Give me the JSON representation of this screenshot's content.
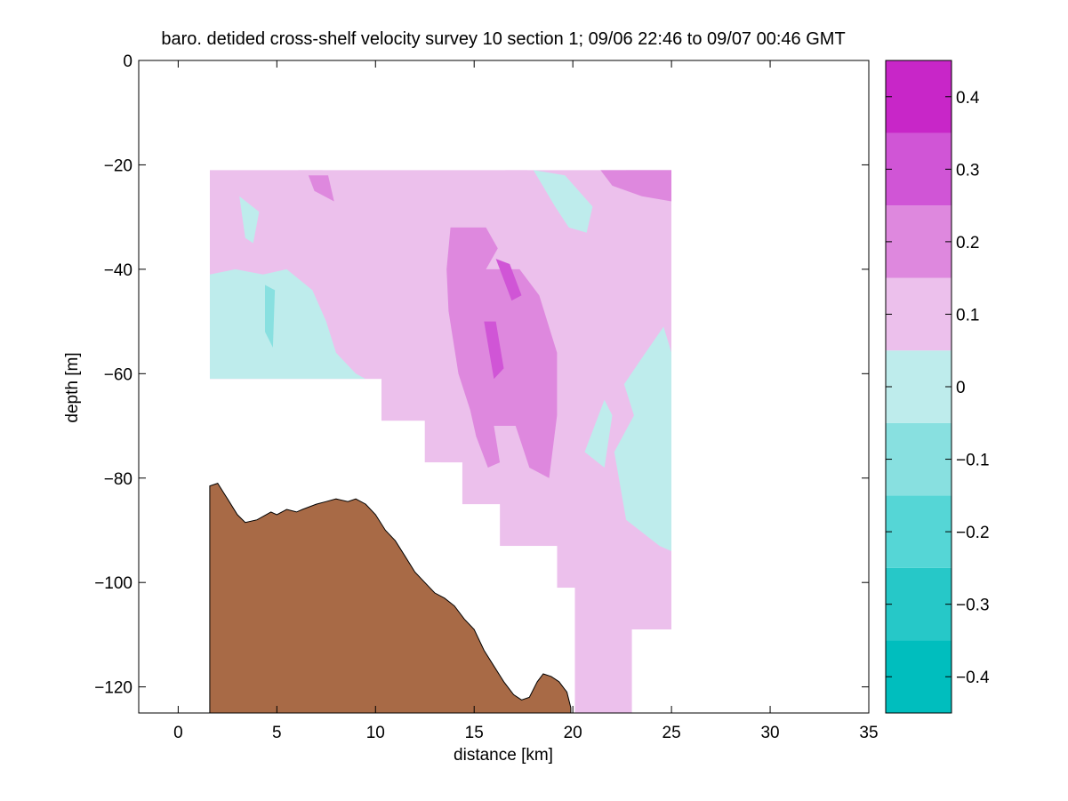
{
  "chart_data": {
    "type": "heatmap",
    "title": "baro. detided cross-shelf velocity survey 10 section 1; 09/06 22:46 to 09/07 00:46 GMT",
    "xlabel": "distance [km]",
    "ylabel": "depth [m]",
    "xlim": [
      -2,
      35
    ],
    "ylim": [
      -125,
      0
    ],
    "x_ticks": [
      0,
      5,
      10,
      15,
      20,
      25,
      30,
      35
    ],
    "x_tick_labels": [
      "0",
      "5",
      "10",
      "15",
      "20",
      "25",
      "30",
      "35"
    ],
    "y_ticks": [
      0,
      -20,
      -40,
      -60,
      -80,
      -100,
      -120
    ],
    "y_tick_labels": [
      "0",
      "−20",
      "−40",
      "−60",
      "−80",
      "−100",
      "−120"
    ],
    "colorbar": {
      "range": [
        -0.45,
        0.45
      ],
      "ticks": [
        -0.4,
        -0.3,
        -0.2,
        -0.1,
        0,
        0.1,
        0.2,
        0.3,
        0.4
      ],
      "tick_labels": [
        "−0.4",
        "−0.3",
        "−0.2",
        "−0.1",
        "0",
        "0.1",
        "0.2",
        "0.3",
        "0.4"
      ],
      "levels": [
        {
          "range": [
            -0.45,
            -0.35
          ],
          "color": "#00BEBE"
        },
        {
          "range": [
            -0.35,
            -0.25
          ],
          "color": "#26C8C8"
        },
        {
          "range": [
            -0.25,
            -0.15
          ],
          "color": "#55D6D6"
        },
        {
          "range": [
            -0.15,
            -0.05
          ],
          "color": "#88E0E0"
        },
        {
          "range": [
            -0.05,
            0.05
          ],
          "color": "#BEECEC"
        },
        {
          "range": [
            0.05,
            0.15
          ],
          "color": "#ECC0EC"
        },
        {
          "range": [
            0.15,
            0.25
          ],
          "color": "#DE88DE"
        },
        {
          "range": [
            0.25,
            0.35
          ],
          "color": "#D055D6"
        },
        {
          "range": [
            0.35,
            0.45
          ],
          "color": "#C826C8"
        }
      ],
      "top_color": "#BE00BE"
    },
    "bottom_color": "#A86A46",
    "data_mask": [
      [
        1.6,
        -21
      ],
      [
        25,
        -21
      ],
      [
        25,
        -109
      ],
      [
        23,
        -109
      ],
      [
        23,
        -125
      ],
      [
        20.1,
        -125
      ],
      [
        20.1,
        -101
      ],
      [
        19.2,
        -101
      ],
      [
        19.2,
        -93
      ],
      [
        16.3,
        -93
      ],
      [
        16.3,
        -85
      ],
      [
        14.4,
        -85
      ],
      [
        14.4,
        -77
      ],
      [
        12.5,
        -77
      ],
      [
        12.5,
        -69
      ],
      [
        10.3,
        -69
      ],
      [
        10.3,
        -61
      ],
      [
        1.6,
        -61
      ]
    ],
    "regions": [
      {
        "value": 0.1,
        "points": [
          [
            3.9,
            -22
          ],
          [
            12.2,
            -22
          ],
          [
            12.3,
            -34
          ],
          [
            11.8,
            -37
          ],
          [
            12.4,
            -47
          ],
          [
            12,
            -52
          ],
          [
            12.9,
            -63
          ],
          [
            12.7,
            -73
          ],
          [
            13.3,
            -77
          ],
          [
            14,
            -80
          ],
          [
            14.3,
            -85
          ],
          [
            15.5,
            -86
          ],
          [
            16.3,
            -93
          ],
          [
            18.5,
            -93
          ],
          [
            19.5,
            -88
          ],
          [
            20.4,
            -80
          ],
          [
            20.4,
            -60
          ],
          [
            19.5,
            -45
          ],
          [
            18.1,
            -35
          ],
          [
            17.4,
            -28
          ],
          [
            16.2,
            -23
          ],
          [
            16.6,
            -21
          ],
          [
            17.7,
            -21
          ],
          [
            18.8,
            -32
          ],
          [
            19.2,
            -40
          ],
          [
            20.1,
            -35
          ],
          [
            21,
            -28
          ],
          [
            22.7,
            -25
          ],
          [
            22.7,
            -21
          ],
          [
            25,
            -21
          ],
          [
            25,
            -28
          ],
          [
            24.2,
            -33
          ],
          [
            23.8,
            -40
          ],
          [
            22.6,
            -48
          ],
          [
            21.7,
            -53
          ],
          [
            21.9,
            -67
          ],
          [
            21.9,
            -80
          ],
          [
            21.3,
            -90
          ],
          [
            21.6,
            -100
          ],
          [
            20.1,
            -101
          ],
          [
            19.2,
            -93
          ],
          [
            16.3,
            -93
          ],
          [
            16.3,
            -85
          ],
          [
            14.4,
            -85
          ],
          [
            14.4,
            -77
          ],
          [
            12.5,
            -77
          ],
          [
            12.5,
            -69
          ],
          [
            10.3,
            -69
          ],
          [
            10.3,
            -61
          ],
          [
            1.6,
            -61
          ],
          [
            1.6,
            -41
          ],
          [
            3,
            -40
          ],
          [
            4.2,
            -41
          ],
          [
            5.5,
            -38
          ],
          [
            5,
            -30
          ],
          [
            4.2,
            -25
          ]
        ]
      },
      {
        "value": 0.1,
        "points": [
          [
            6.1,
            -21
          ],
          [
            7.3,
            -21
          ],
          [
            8,
            -25
          ],
          [
            8.1,
            -34
          ],
          [
            7.2,
            -35
          ],
          [
            6.6,
            -27
          ]
        ]
      },
      {
        "value": 0.1,
        "points": [
          [
            9,
            -36
          ],
          [
            9.6,
            -37
          ],
          [
            9.9,
            -43
          ],
          [
            10.7,
            -46
          ],
          [
            11.1,
            -48
          ],
          [
            10.1,
            -49
          ],
          [
            9.2,
            -43
          ]
        ]
      },
      {
        "value": 0.2,
        "points": [
          [
            6.6,
            -22
          ],
          [
            7.6,
            -22
          ],
          [
            7.9,
            -27
          ],
          [
            6.9,
            -25
          ]
        ]
      },
      {
        "value": 0.2,
        "points": [
          [
            13.8,
            -32
          ],
          [
            15.6,
            -32
          ],
          [
            16.2,
            -36
          ],
          [
            15.6,
            -40
          ],
          [
            17.3,
            -40
          ],
          [
            18.3,
            -45
          ],
          [
            19.2,
            -56
          ],
          [
            19.2,
            -68
          ],
          [
            18.8,
            -80
          ],
          [
            17.8,
            -78
          ],
          [
            17.1,
            -70
          ],
          [
            16,
            -70
          ],
          [
            16.3,
            -77
          ],
          [
            15.7,
            -78
          ],
          [
            15.1,
            -72
          ],
          [
            14.8,
            -67
          ],
          [
            14.2,
            -60
          ],
          [
            13.7,
            -48
          ],
          [
            13.6,
            -40
          ]
        ]
      },
      {
        "value": 0.2,
        "points": [
          [
            21.4,
            -21
          ],
          [
            25,
            -21
          ],
          [
            25,
            -27
          ],
          [
            23.5,
            -26
          ],
          [
            22,
            -24
          ]
        ]
      },
      {
        "value": 0.3,
        "points": [
          [
            16.1,
            -38
          ],
          [
            16.8,
            -39
          ],
          [
            17.4,
            -45
          ],
          [
            16.9,
            -46
          ]
        ]
      },
      {
        "value": 0.3,
        "points": [
          [
            15.5,
            -50
          ],
          [
            16.1,
            -50
          ],
          [
            16.5,
            -59
          ],
          [
            16,
            -61
          ]
        ]
      },
      {
        "value": 0,
        "points": [
          [
            1.6,
            -41
          ],
          [
            2.9,
            -40
          ],
          [
            4.3,
            -41
          ],
          [
            5.5,
            -40
          ],
          [
            6.8,
            -44
          ],
          [
            7.5,
            -50
          ],
          [
            8,
            -56
          ],
          [
            9,
            -60
          ],
          [
            9.5,
            -61
          ],
          [
            1.6,
            -61
          ]
        ]
      },
      {
        "value": 0,
        "points": [
          [
            3.1,
            -26
          ],
          [
            4.1,
            -29
          ],
          [
            3.8,
            -35
          ],
          [
            3.4,
            -34
          ]
        ]
      },
      {
        "value": 0,
        "points": [
          [
            18,
            -21
          ],
          [
            19.6,
            -22
          ],
          [
            21,
            -28
          ],
          [
            20.7,
            -33
          ],
          [
            19.8,
            -32
          ],
          [
            19.1,
            -28
          ]
        ]
      },
      {
        "value": 0,
        "points": [
          [
            24.6,
            -51
          ],
          [
            25,
            -56
          ],
          [
            25,
            -94
          ],
          [
            24.4,
            -93
          ],
          [
            22.7,
            -88
          ],
          [
            22.1,
            -75
          ],
          [
            23.1,
            -68
          ],
          [
            22.6,
            -62
          ],
          [
            23.5,
            -57
          ]
        ]
      },
      {
        "value": 0,
        "points": [
          [
            21.6,
            -65
          ],
          [
            22,
            -68
          ],
          [
            21.6,
            -78
          ],
          [
            20.6,
            -75
          ]
        ]
      },
      {
        "value": -0.1,
        "points": [
          [
            4.4,
            -43
          ],
          [
            4.9,
            -44
          ],
          [
            4.8,
            -55
          ],
          [
            4.4,
            -52
          ]
        ]
      }
    ],
    "bottom_profile": [
      [
        1.6,
        -81.5
      ],
      [
        2,
        -81
      ],
      [
        2.5,
        -84
      ],
      [
        3,
        -87
      ],
      [
        3.4,
        -88.5
      ],
      [
        4,
        -88
      ],
      [
        4.7,
        -86.5
      ],
      [
        5,
        -87
      ],
      [
        5.5,
        -86
      ],
      [
        6,
        -86.5
      ],
      [
        6.3,
        -86
      ],
      [
        7,
        -85
      ],
      [
        7.5,
        -84.5
      ],
      [
        8,
        -84
      ],
      [
        8.6,
        -84.5
      ],
      [
        9,
        -84
      ],
      [
        9.5,
        -85
      ],
      [
        10,
        -87
      ],
      [
        10.5,
        -90
      ],
      [
        11,
        -92
      ],
      [
        11.5,
        -95
      ],
      [
        12,
        -98
      ],
      [
        12.5,
        -100
      ],
      [
        13,
        -102
      ],
      [
        13.5,
        -103
      ],
      [
        14,
        -104.5
      ],
      [
        14.5,
        -107
      ],
      [
        15,
        -109
      ],
      [
        15.5,
        -113
      ],
      [
        16,
        -116
      ],
      [
        16.5,
        -119
      ],
      [
        17,
        -121.5
      ],
      [
        17.4,
        -122.5
      ],
      [
        17.8,
        -122
      ],
      [
        18.2,
        -119
      ],
      [
        18.5,
        -117.5
      ],
      [
        18.9,
        -118
      ],
      [
        19.3,
        -119
      ],
      [
        19.7,
        -121
      ],
      [
        19.9,
        -124
      ],
      [
        19.9,
        -125
      ],
      [
        1.6,
        -125
      ]
    ]
  }
}
